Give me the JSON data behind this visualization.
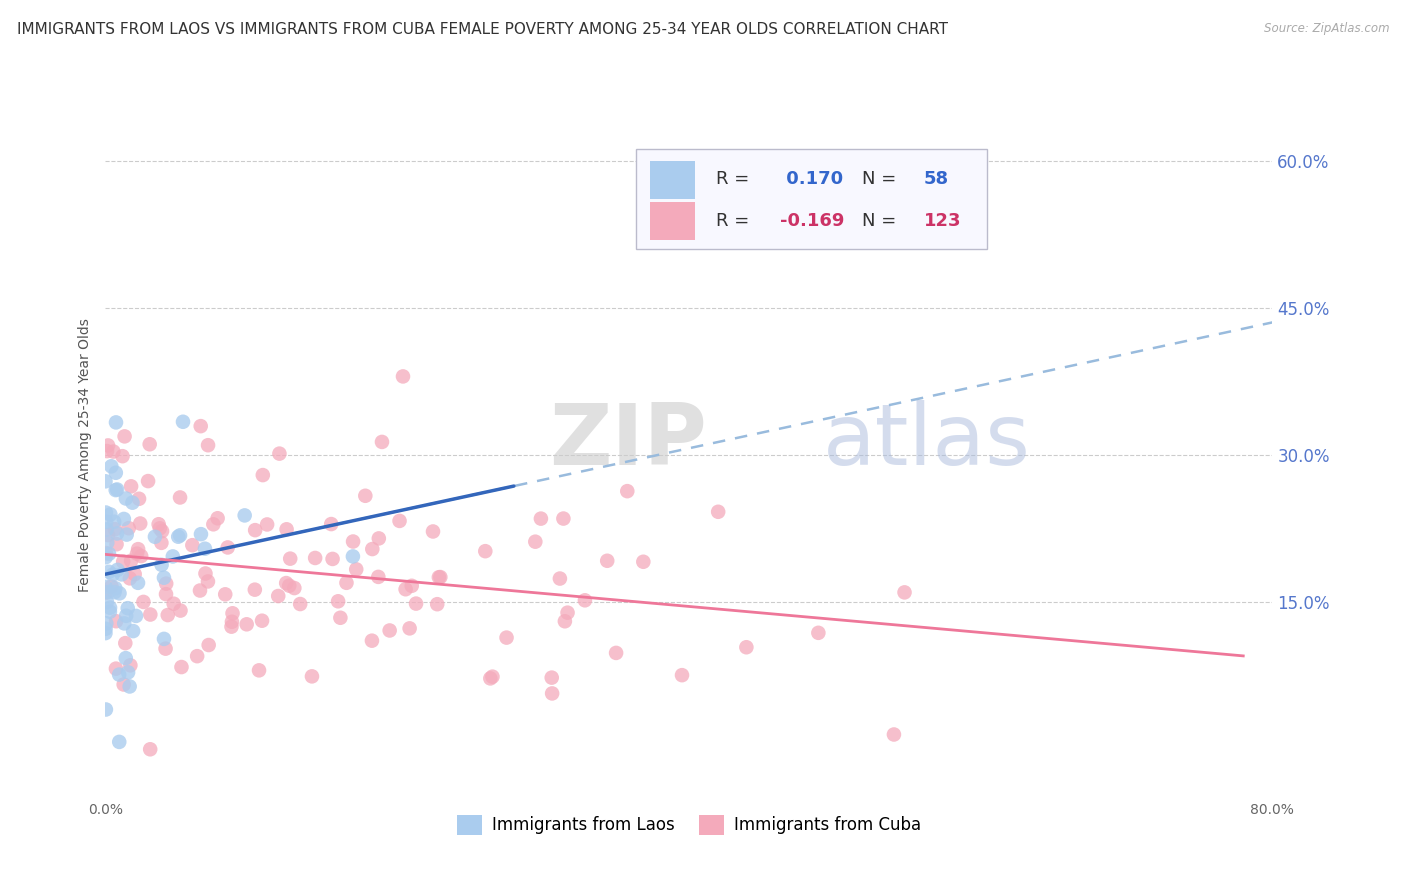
{
  "title": "IMMIGRANTS FROM LAOS VS IMMIGRANTS FROM CUBA FEMALE POVERTY AMONG 25-34 YEAR OLDS CORRELATION CHART",
  "source": "Source: ZipAtlas.com",
  "ylabel": "Female Poverty Among 25-34 Year Olds",
  "xlim": [
    0.0,
    0.8
  ],
  "ylim": [
    -0.05,
    0.65
  ],
  "xticks": [
    0.0,
    0.1,
    0.2,
    0.3,
    0.4,
    0.5,
    0.6,
    0.7,
    0.8
  ],
  "xtick_labels": [
    "0.0%",
    "",
    "",
    "",
    "",
    "",
    "",
    "",
    "80.0%"
  ],
  "yticks": [
    0.0,
    0.15,
    0.3,
    0.45,
    0.6
  ],
  "ytick_labels": [
    "",
    "15.0%",
    "30.0%",
    "45.0%",
    "60.0%"
  ],
  "laos_color": "#aaccee",
  "cuba_color": "#f4aabb",
  "laos_line_color": "#3366bb",
  "cuba_line_color": "#ee7799",
  "dashed_line_color": "#99bbdd",
  "laos_R": 0.17,
  "laos_N": 58,
  "cuba_R": -0.169,
  "cuba_N": 123,
  "watermark_zip": "ZIP",
  "watermark_atlas": "atlas",
  "background_color": "#ffffff",
  "grid_color": "#cccccc",
  "title_fontsize": 11,
  "axis_label_fontsize": 10,
  "tick_fontsize": 10,
  "right_tick_color": "#5577cc"
}
